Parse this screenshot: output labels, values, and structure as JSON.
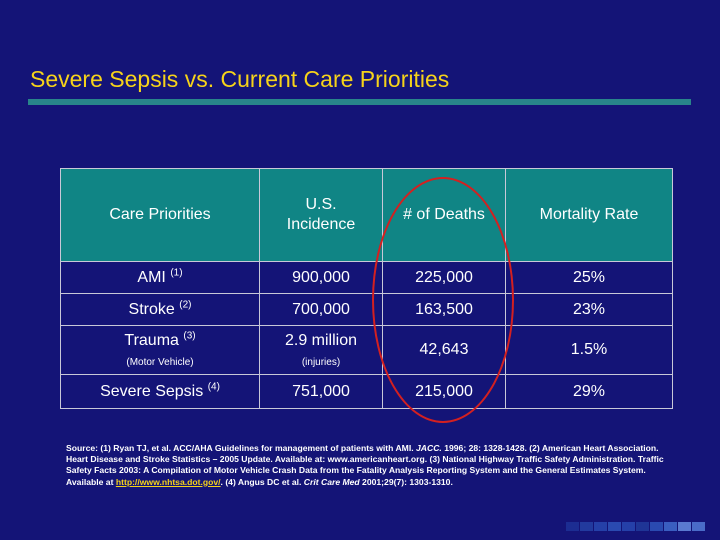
{
  "slide": {
    "title": "Severe Sepsis vs. Current Care Priorities"
  },
  "table": {
    "headers": [
      "Care Priorities",
      "U.S. Incidence",
      "# of Deaths",
      "Mortality Rate"
    ],
    "rows": [
      {
        "priority": "AMI",
        "ref": "(1)",
        "priority_note": "",
        "incidence": "900,000",
        "incidence_note": "",
        "deaths": "225,000",
        "mortality": "25%"
      },
      {
        "priority": "Stroke",
        "ref": "(2)",
        "priority_note": "",
        "incidence": "700,000",
        "incidence_note": "",
        "deaths": "163,500",
        "mortality": "23%"
      },
      {
        "priority": "Trauma",
        "ref": "(3)",
        "priority_note": "(Motor Vehicle)",
        "incidence": "2.9 million",
        "incidence_note": "(injuries)",
        "deaths": "42,643",
        "mortality": "1.5%"
      },
      {
        "priority": "Severe Sepsis",
        "ref": "(4)",
        "priority_note": "",
        "incidence": "751,000",
        "incidence_note": "",
        "deaths": "215,000",
        "mortality": "29%"
      }
    ]
  },
  "highlight": {
    "color": "#d42020",
    "label": "circle around # of Deaths column"
  },
  "source": {
    "part1": "Source:  (1) Ryan TJ, et al. ACC/AHA Guidelines for management of patients with AMI. ",
    "journal1": "JACC.",
    "part2": " 1996; 28: 1328-1428. (2) American Heart Association. Heart Disease and Stroke Statistics – 2005 Update. Available at: www.americanheart.org. (3) National Highway Traffic Safety Administration. Traffic Safety Facts 2003: A Compilation of Motor Vehicle Crash Data from the Fatality Analysis Reporting System and the General Estimates System. Available at ",
    "link": "http://www.nhtsa.dot.gov/",
    "part3": ". (4) Angus DC et al. ",
    "journal2": "Crit Care Med",
    "part4": " 2001;29(7): 1303-1310."
  },
  "colors": {
    "background": "#141477",
    "title": "#f6d31a",
    "accent_rule": "#28858a",
    "header_fill": "#108585"
  }
}
